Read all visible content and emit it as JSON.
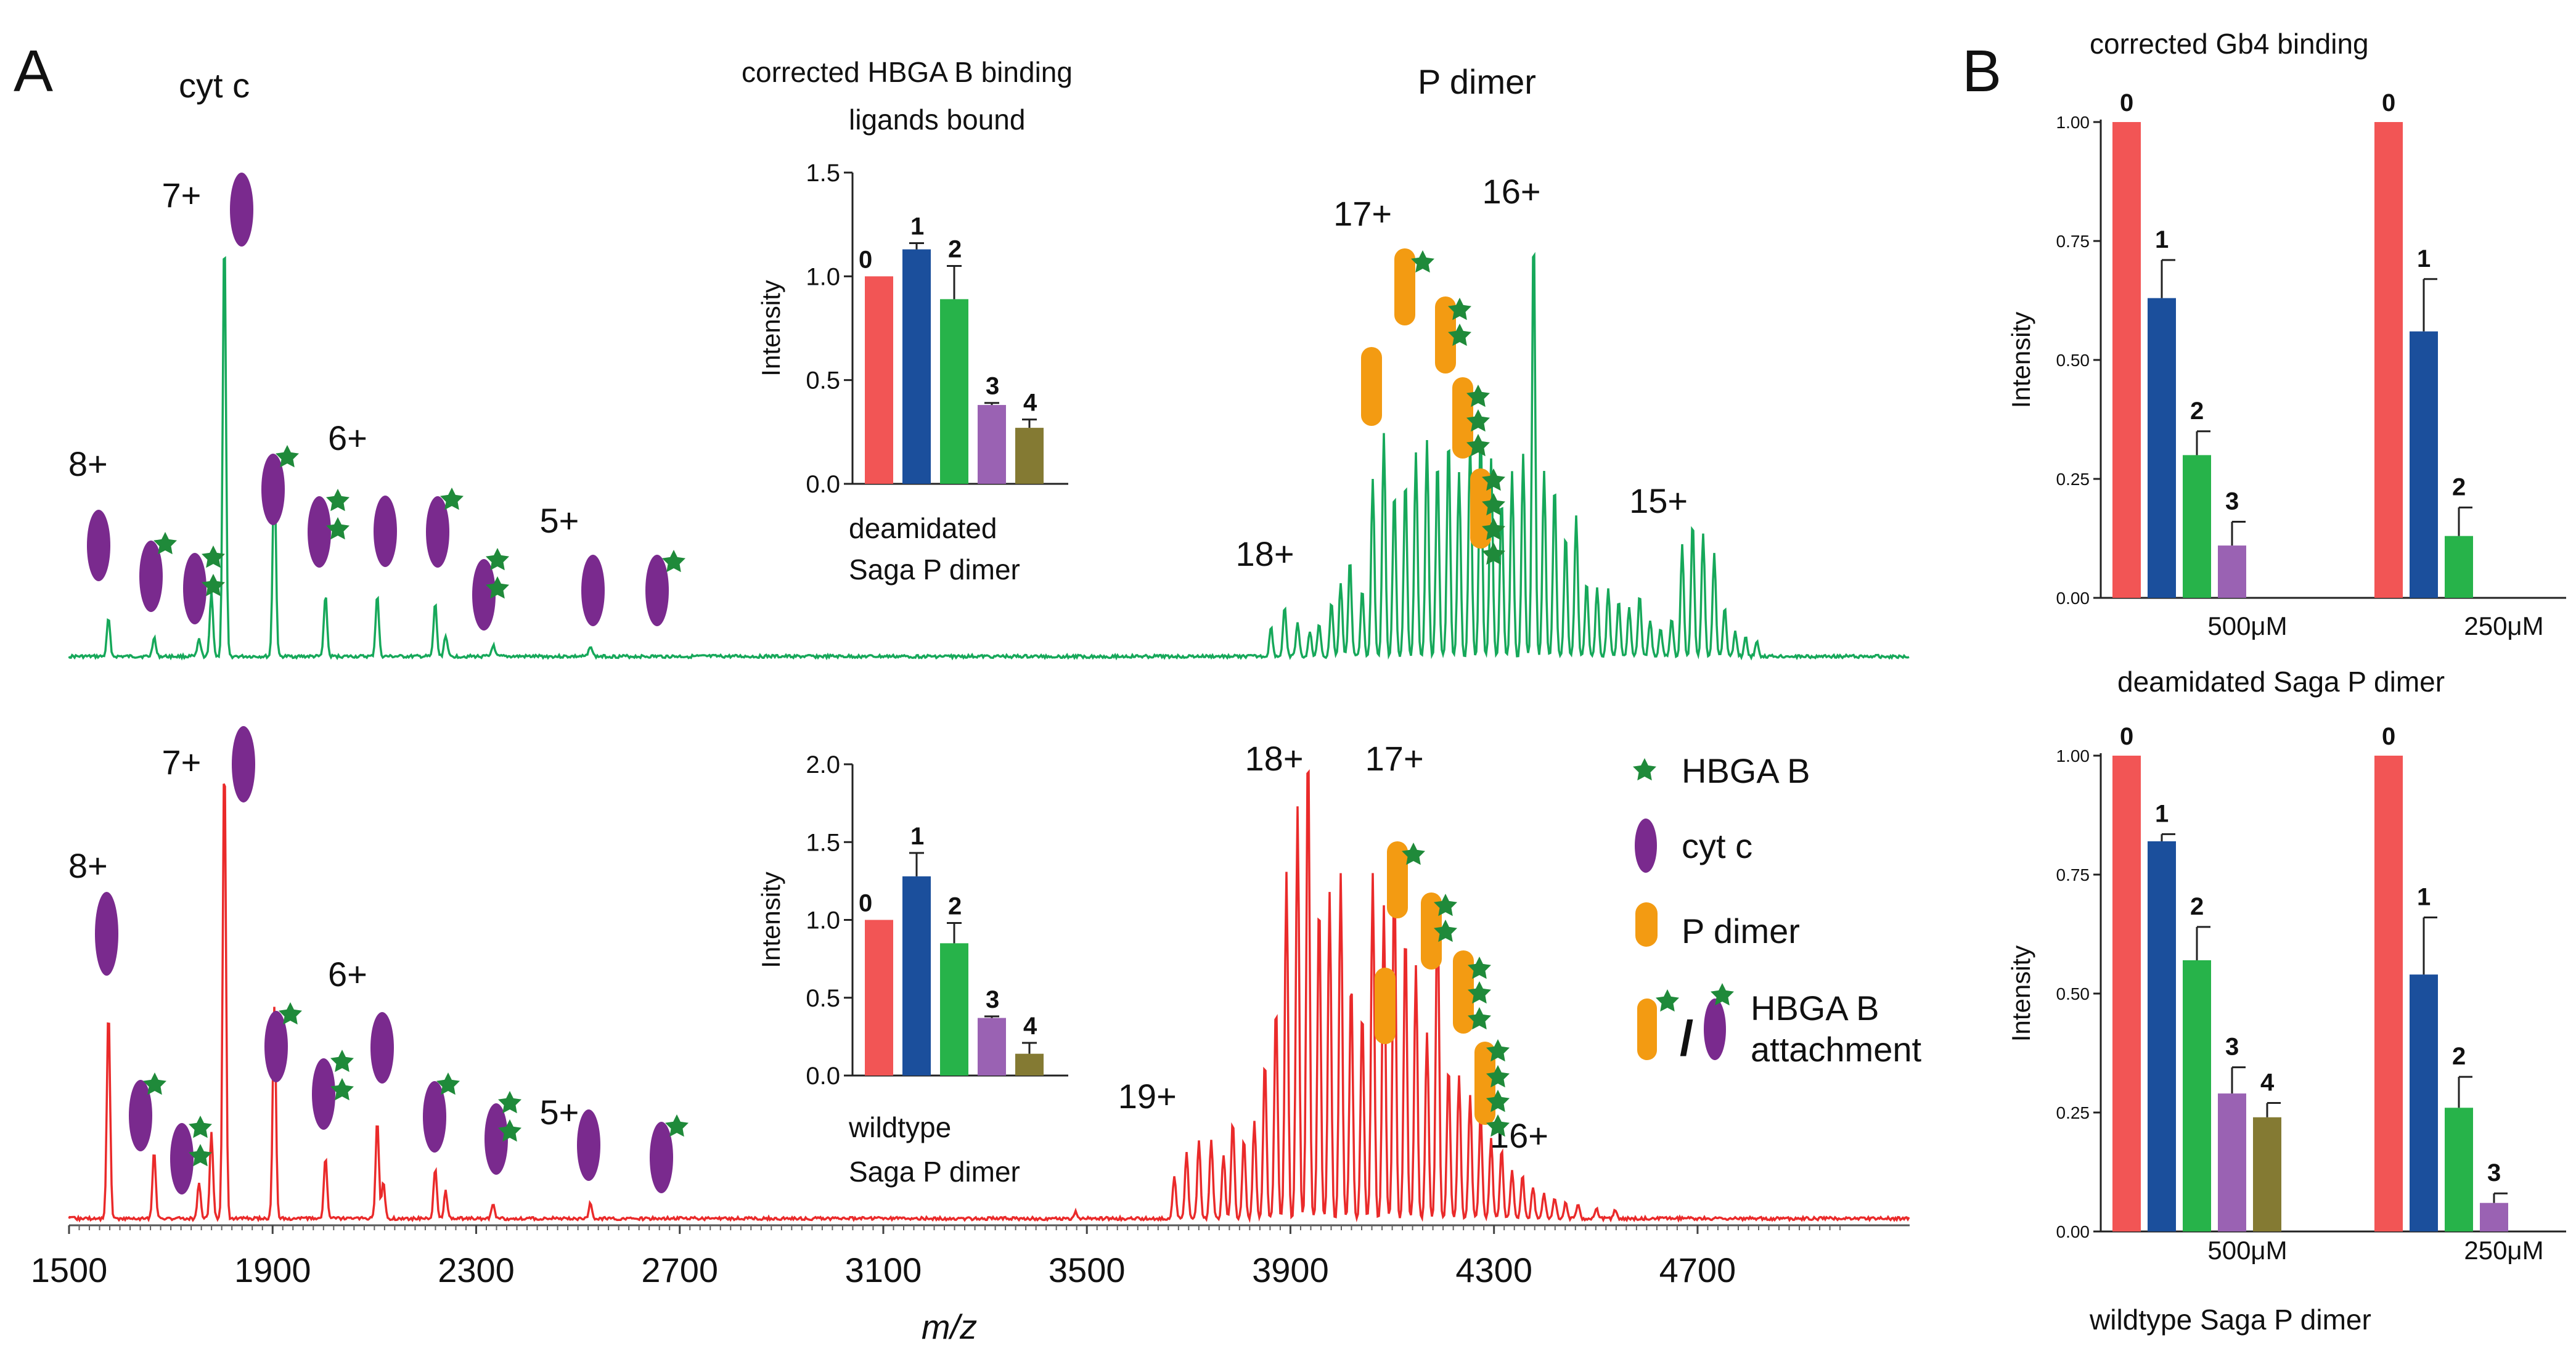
{
  "panel_labels": {
    "a": "A",
    "b": "B"
  },
  "colors": {
    "top_spectrum": "#16a85a",
    "bottom_spectrum": "#ea2a2a",
    "bar0": "#f25555",
    "bar1": "#1b4f9c",
    "bar2": "#27b34a",
    "bar3": "#9a62b3",
    "bar4": "#847a33",
    "cytc": "#7a2a8e",
    "pdimer": "#f39b12",
    "star": "#1f8a3a"
  },
  "spectra": {
    "top_heading_left": "cyt c",
    "top_heading_right": "P dimer",
    "x_axis_label": "m/z",
    "x_ticks": [
      "1500",
      "1900",
      "2300",
      "2700",
      "3100",
      "3500",
      "3900",
      "4300",
      "4700"
    ],
    "top_ions": [
      {
        "label": "8+",
        "mz": 1535
      },
      {
        "label": "7+",
        "mz": 1755
      },
      {
        "label": "6+",
        "mz": 2045
      },
      {
        "label": "5+",
        "mz": 2455
      },
      {
        "label": "18+",
        "mz": 3865
      },
      {
        "label": "17+",
        "mz": 4045
      },
      {
        "label": "16+",
        "mz": 4295
      },
      {
        "label": "15+",
        "mz": 4590
      }
    ],
    "bottom_ions": [
      {
        "label": "8+",
        "mz": 1535
      },
      {
        "label": "7+",
        "mz": 1755
      },
      {
        "label": "6+",
        "mz": 2045
      },
      {
        "label": "5+",
        "mz": 2455
      },
      {
        "label": "19+",
        "mz": 3640
      },
      {
        "label": "18+",
        "mz": 3865
      },
      {
        "label": "17+",
        "mz": 4065
      },
      {
        "label": "16+",
        "mz": 4310
      }
    ]
  },
  "legend": {
    "items": [
      "HBGA B",
      "cyt c",
      "P dimer"
    ],
    "attachment_line1": "HBGA B",
    "attachment_line2": "attachment",
    "separator": "/"
  },
  "chart_data": [
    {
      "type": "bar",
      "id": "inset_deamidated",
      "title": "corrected HBGA B binding",
      "subtitle": "ligands bound",
      "caption_line1": "deamidated",
      "caption_line2": "Saga P dimer",
      "ylabel": "Intensity",
      "ylim": [
        0,
        1.5
      ],
      "yticks": [
        "0.0",
        "0.5",
        "1.0",
        "1.5"
      ],
      "categories": [
        "0",
        "1",
        "2",
        "3",
        "4"
      ],
      "values": [
        1.0,
        1.13,
        0.89,
        0.38,
        0.27
      ],
      "errors": [
        0,
        0.03,
        0.16,
        0.01,
        0.04
      ]
    },
    {
      "type": "bar",
      "id": "inset_wildtype",
      "ylabel": "Intensity",
      "caption_line1": "wildtype",
      "caption_line2": "Saga P dimer",
      "ylim": [
        0,
        2.0
      ],
      "yticks": [
        "0.0",
        "0.5",
        "1.0",
        "1.5",
        "2.0"
      ],
      "categories": [
        "0",
        "1",
        "2",
        "3",
        "4"
      ],
      "values": [
        1.0,
        1.28,
        0.85,
        0.37,
        0.14
      ],
      "errors": [
        0,
        0.15,
        0.13,
        0.01,
        0.07
      ]
    },
    {
      "type": "bar",
      "id": "gb4_deamidated",
      "title": "corrected Gb4 binding",
      "caption": "deamidated Saga P dimer",
      "ylabel": "Intensity",
      "ylim": [
        0,
        1.0
      ],
      "yticks": [
        "0.00",
        "0.25",
        "0.50",
        "0.75",
        "1.00"
      ],
      "groups": [
        "500μM",
        "250μM"
      ],
      "series": [
        {
          "group": "500μM",
          "categories": [
            "0",
            "1",
            "2",
            "3"
          ],
          "values": [
            1.0,
            0.63,
            0.3,
            0.11
          ],
          "errors": [
            0,
            0.08,
            0.05,
            0.05
          ]
        },
        {
          "group": "250μM",
          "categories": [
            "0",
            "1",
            "2"
          ],
          "values": [
            1.0,
            0.56,
            0.13
          ],
          "errors": [
            0,
            0.11,
            0.06
          ]
        }
      ]
    },
    {
      "type": "bar",
      "id": "gb4_wildtype",
      "caption": "wildtype Saga P dimer",
      "ylabel": "Intensity",
      "ylim": [
        0,
        1.0
      ],
      "yticks": [
        "0.00",
        "0.25",
        "0.50",
        "0.75",
        "1.00"
      ],
      "groups": [
        "500μM",
        "250μM"
      ],
      "series": [
        {
          "group": "500μM",
          "categories": [
            "0",
            "1",
            "2",
            "3",
            "4"
          ],
          "values": [
            1.0,
            0.82,
            0.57,
            0.29,
            0.24
          ],
          "errors": [
            0,
            0.015,
            0.07,
            0.055,
            0.03
          ]
        },
        {
          "group": "250μM",
          "categories": [
            "0",
            "1",
            "2",
            "3"
          ],
          "values": [
            1.0,
            0.54,
            0.26,
            0.06
          ],
          "errors": [
            0,
            0.12,
            0.065,
            0.02
          ]
        }
      ]
    }
  ]
}
